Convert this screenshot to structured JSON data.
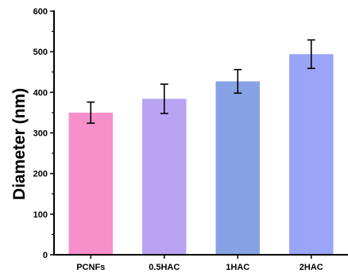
{
  "chart_data": {
    "type": "bar",
    "title": "",
    "xlabel": "",
    "ylabel": "Diameter (nm)",
    "categories": [
      "PCNFs",
      "0.5HAC",
      "1HAC",
      "2HAC"
    ],
    "values": [
      350,
      384,
      427,
      494
    ],
    "errors": [
      26,
      36,
      29,
      35
    ],
    "colors": [
      "#f78fca",
      "#b9a3f3",
      "#87a3e6",
      "#9aa4f9"
    ],
    "ylim": [
      0,
      600
    ],
    "yticks": [
      0,
      100,
      200,
      300,
      400,
      500,
      600
    ],
    "grid": false,
    "legend": "none"
  }
}
